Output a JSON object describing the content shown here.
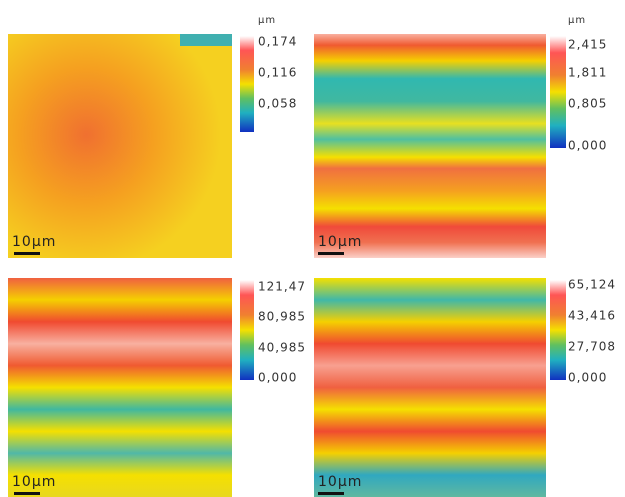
{
  "panels": [
    {
      "unit": "μm",
      "ticks": [
        "0,174",
        "0,116",
        "0,058"
      ],
      "scale_bar": "10μm"
    },
    {
      "unit": "μm",
      "ticks": [
        "2,415",
        "1,811",
        "0,805",
        "0,000"
      ],
      "scale_bar": "10μm"
    },
    {
      "ticks": [
        "121,47",
        "80,985",
        "40,985",
        "0,000"
      ],
      "scale_bar": "10μm"
    },
    {
      "ticks": [
        "65,124",
        "43,416",
        "27,708",
        "0,000"
      ],
      "scale_bar": "10μm"
    }
  ]
}
